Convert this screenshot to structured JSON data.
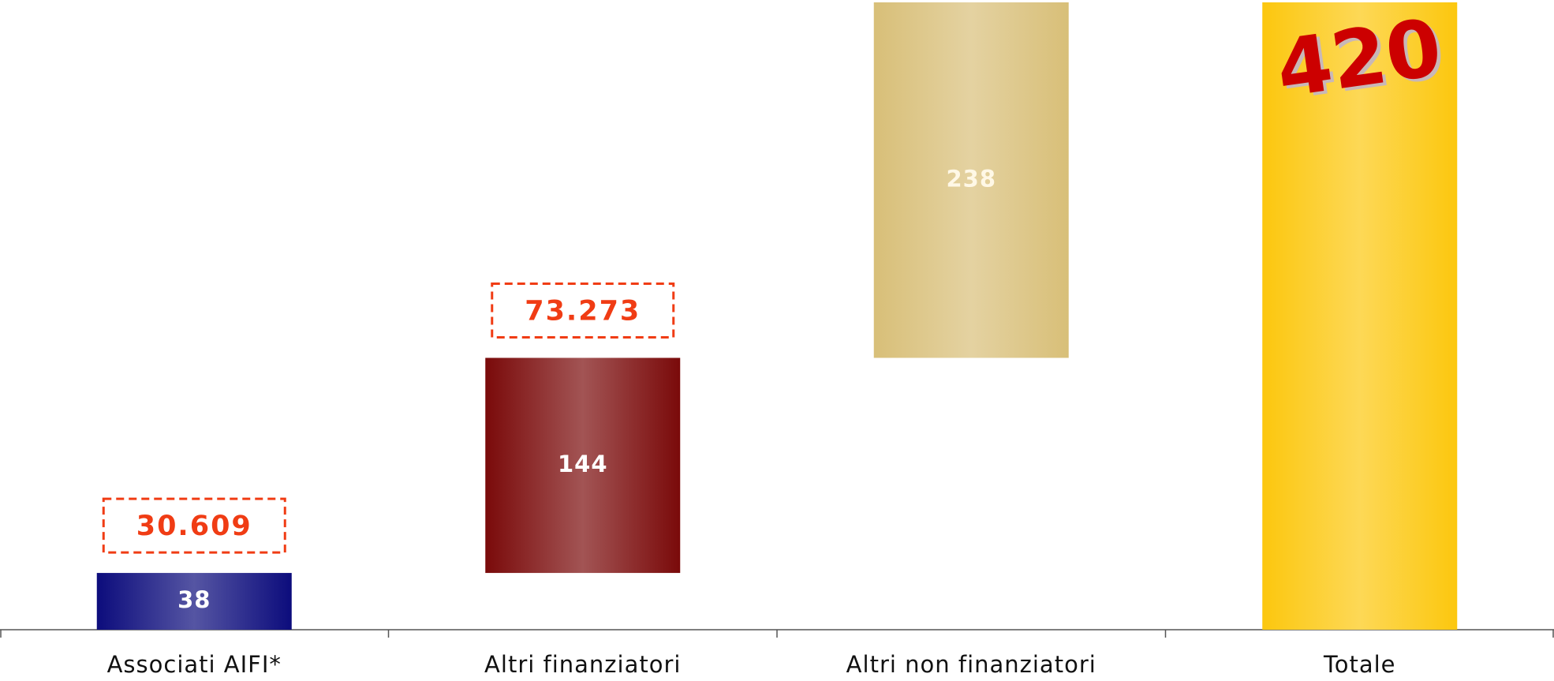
{
  "chart_data": {
    "type": "waterfall",
    "categories": [
      "Associati AIFI*",
      "Altri finanziatori",
      "Altri non finanziatori",
      "Totale"
    ],
    "values": [
      38,
      144,
      238,
      420
    ],
    "total": [
      false,
      false,
      false,
      true
    ],
    "colors": [
      "#0c0c7c",
      "#7a0a0a",
      "#d8bf78",
      "#fcc70e"
    ],
    "annotations": [
      "30.609",
      "73.273",
      null,
      null
    ]
  }
}
